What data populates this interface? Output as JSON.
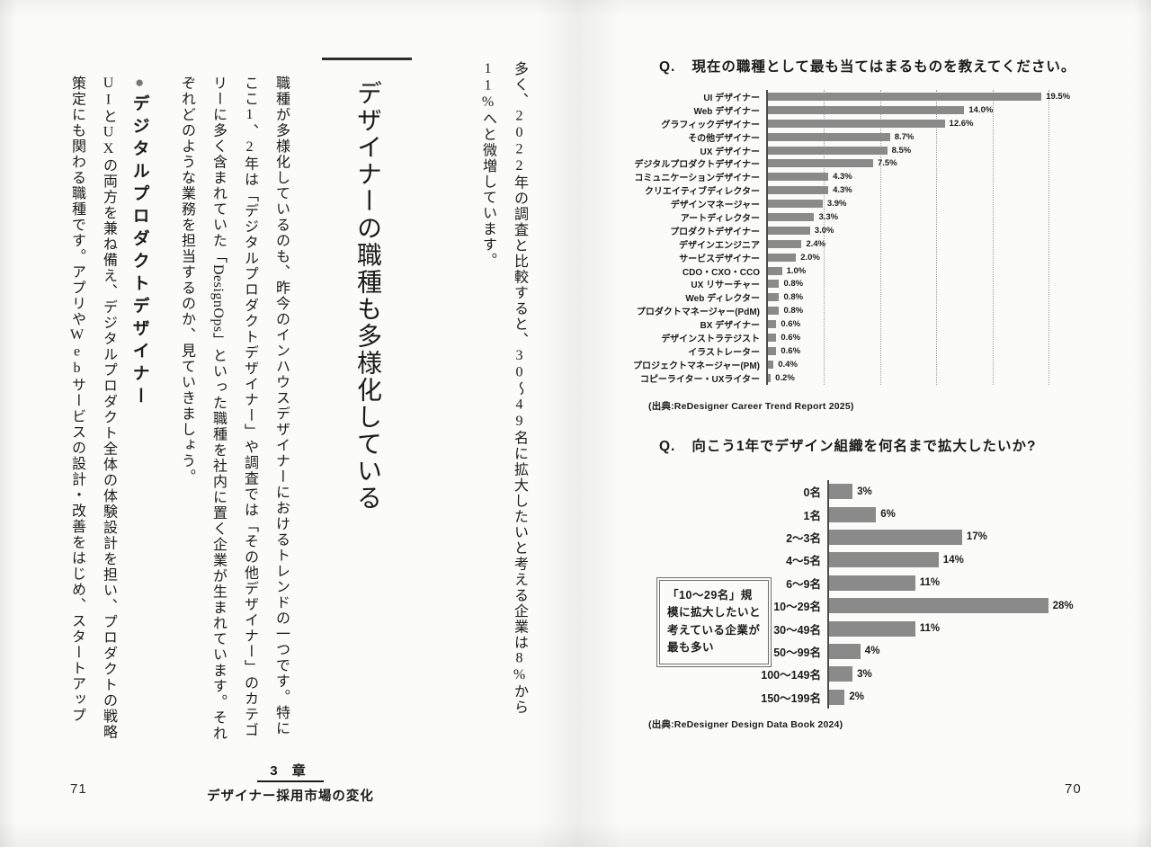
{
  "left_page": {
    "page_number": "71",
    "intro": "多く、2022年の調査と比較すると、30〜49名に拡大したいと考える企業は8%から11%へと微増しています。",
    "heading": "デザイナーの職種も多様化している",
    "para1": {
      "part1": "職種が多様化しているのも、昨今のインハウスデザイナーにおけるトレンドの一つです。特にここ1、2年は「デジタルプロダクトデザイナー」や調査では「その他デザイナー」のカテゴリーに多く含まれていた「",
      "designops": "DesignOps",
      "part2": "」といった職種を社内に置く企業が生まれています。それぞれどのような業務を担当するのか、見ていきましょう。"
    },
    "subhead": {
      "bullet": "●",
      "text": "デジタルプロダクトデザイナー"
    },
    "para2": "UIとUXの両方を兼ね備え、デジタルプロダクト全体の体験設計を担い、プロダクトの戦略策定にも関わる職種です。アプリやWebサービスの設計・改善をはじめ、スタートアップ"
  },
  "right_page": {
    "page_number": "70"
  },
  "footer": {
    "chapter_number": "3 章",
    "chapter_title": "デザイナー採用市場の変化"
  },
  "chart_data": [
    {
      "type": "bar",
      "orientation": "horizontal",
      "q_label": "Q.",
      "title": "現在の職種として最も当てはまるものを教えてください。",
      "categories": [
        "UI デザイナー",
        "Web デザイナー",
        "グラフィックデザイナー",
        "その他デザイナー",
        "UX デザイナー",
        "デジタルプロダクトデザイナー",
        "コミュニケーションデザイナー",
        "クリエイティブディレクター",
        "デザインマネージャー",
        "アートディレクター",
        "プロダクトデザイナー",
        "デザインエンジニア",
        "サービスデザイナー",
        "CDO・CXO・CCO",
        "UX リサーチャー",
        "Web ディレクター",
        "プロダクトマネージャー(PdM)",
        "BX デザイナー",
        "デザインストラテジスト",
        "イラストレーター",
        "プロジェクトマネージャー(PM)",
        "コピーライター・UXライター"
      ],
      "values": [
        19.5,
        14.0,
        12.6,
        8.7,
        8.5,
        7.5,
        4.3,
        4.3,
        3.9,
        3.3,
        3.0,
        2.4,
        2.0,
        1.0,
        0.8,
        0.8,
        0.8,
        0.6,
        0.6,
        0.6,
        0.4,
        0.2
      ],
      "value_labels": [
        "19.5%",
        "14.0%",
        "12.6%",
        "8.7%",
        "8.5%",
        "7.5%",
        "4.3%",
        "4.3%",
        "3.9%",
        "3.3%",
        "3.0%",
        "2.4%",
        "2.0%",
        "1.0%",
        "0.8%",
        "0.8%",
        "0.8%",
        "0.6%",
        "0.6%",
        "0.6%",
        "0.4%",
        "0.2%"
      ],
      "xlim": [
        0,
        20
      ],
      "gridlines": [
        4,
        8,
        12,
        16,
        20
      ],
      "grid": true,
      "legend": "none",
      "bar_color": "#8a8a8a",
      "source": "(出典:ReDesigner Career Trend Report 2025)"
    },
    {
      "type": "bar",
      "orientation": "horizontal",
      "q_label": "Q.",
      "title": "向こう1年でデザイン組織を何名まで拡大したいか?",
      "categories": [
        "0名",
        "1名",
        "2〜3名",
        "4〜5名",
        "6〜9名",
        "10〜29名",
        "30〜49名",
        "50〜99名",
        "100〜149名",
        "150〜199名"
      ],
      "values": [
        3,
        6,
        17,
        14,
        11,
        28,
        11,
        4,
        3,
        2
      ],
      "value_labels": [
        "3%",
        "6%",
        "17%",
        "14%",
        "11%",
        "28%",
        "11%",
        "4%",
        "3%",
        "2%"
      ],
      "xlim": [
        0,
        30
      ],
      "gridlines": [],
      "grid": false,
      "legend": "none",
      "bar_color": "#8a8a8a",
      "annotation": "「10〜29名」規模に拡大したいと考えている企業が最も多い",
      "source": "(出典:ReDesigner Design Data Book 2024)"
    }
  ]
}
